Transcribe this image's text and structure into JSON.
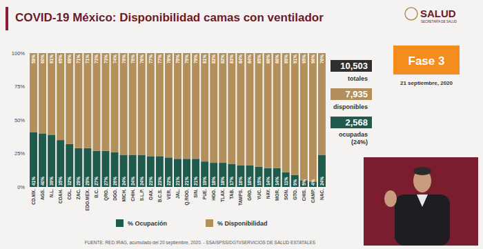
{
  "header": {
    "title": "COVID-19 México: Disponibilidad camas con ventilador",
    "logo": "SALUD",
    "logo_sub": "SECRETARÍA DE SALUD",
    "phase": "Fase 3",
    "date": "21 septiembre, 2020"
  },
  "summary": {
    "total": {
      "value": "10,503",
      "label": "totales"
    },
    "available": {
      "value": "7,935",
      "label": "disponibles"
    },
    "occupied": {
      "value": "2,568",
      "label": "ocupadas",
      "share": "(24%)"
    }
  },
  "source": "FUENTE: RED IRAG, acumulado del 20 septiembre, 2020. - SSA/SPSS/DGTI/SERVICIOS DE SALUD ESTATALES",
  "chart_data": {
    "type": "bar",
    "stacked": true,
    "data_labels": true,
    "grid": false,
    "legend": "bottom",
    "categories": [
      "CD.MX.",
      "AGS.",
      "N.L.",
      "COAH.",
      "COL.",
      "ZAC.",
      "EDO.MEX.",
      "B.C.",
      "QRO.",
      "DGO.",
      "MICH.",
      "CHIH.",
      "S.L.P.",
      "OAX.",
      "B.C.S.",
      "VER.",
      "JAL.",
      "Q.ROO.",
      "SIN.",
      "PUE.",
      "HGO.",
      "TLAX.",
      "TAB.",
      "TAMPS.",
      "GRO.",
      "YUC.",
      "NAY.",
      "MOR.",
      "SON.",
      "GTO.",
      "CHIS.",
      "CAMP.",
      "NAC."
    ],
    "series": [
      {
        "name": "% Ocupación",
        "color": "#1f5a4d",
        "values": [
          41,
          40,
          39,
          35,
          32,
          29,
          29,
          27,
          27,
          26,
          24,
          24,
          24,
          23,
          23,
          22,
          21,
          21,
          21,
          19,
          18,
          18,
          17,
          16,
          16,
          15,
          14,
          14,
          11,
          9,
          5,
          4,
          24
        ],
        "value_labels": [
          "41%",
          "40%",
          "39%",
          "35%",
          "32%",
          "29%",
          "29%",
          "27%",
          "27%",
          "26%",
          "24%",
          "24%",
          "24%",
          "23%",
          "23%",
          "22%",
          "21%",
          "21%",
          "21%",
          "19%",
          "18%",
          "18%",
          "17%",
          "16%",
          "16%",
          "15%",
          "14%",
          "14%",
          "11%",
          "9%",
          "5%",
          "4%",
          "24%"
        ]
      },
      {
        "name": "% Disponibilidad",
        "color": "#b3905b",
        "values": [
          59,
          60,
          61,
          65,
          68,
          71,
          71,
          73,
          73,
          74,
          76,
          76,
          76,
          77,
          77,
          78,
          79,
          79,
          79,
          81,
          82,
          82,
          83,
          84,
          84,
          85,
          86,
          86,
          89,
          91,
          95,
          96,
          76
        ],
        "value_labels": [
          "59%",
          "60%",
          "61%",
          "65%",
          "68%",
          "71%",
          "71%",
          "73%",
          "73%",
          "74%",
          "76%",
          "76%",
          "76%",
          "77%",
          "77%",
          "78%",
          "79%",
          "79%",
          "79%",
          "81%",
          "82%",
          "82%",
          "83%",
          "84%",
          "84%",
          "85%",
          "86%",
          "86%",
          "89%",
          "91%",
          "95%",
          "96%",
          "76%"
        ]
      }
    ],
    "ylim": [
      0,
      100
    ],
    "yticks": [
      {
        "value": 0,
        "label": "0%"
      },
      {
        "value": 25,
        "label": "25%"
      },
      {
        "value": 50,
        "label": "50%"
      },
      {
        "value": 75,
        "label": "75%"
      },
      {
        "value": 100,
        "label": "100%"
      }
    ]
  }
}
